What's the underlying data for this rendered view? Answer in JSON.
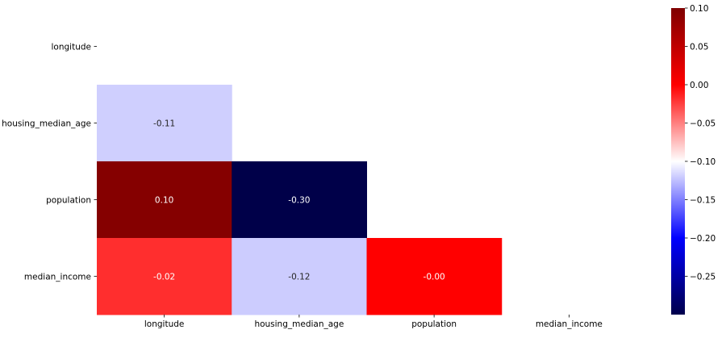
{
  "chart_data": {
    "type": "heatmap",
    "rows": [
      "longitude",
      "housing_median_age",
      "population",
      "median_income"
    ],
    "columns": [
      "longitude",
      "housing_median_age",
      "population",
      "median_income"
    ],
    "cells": [
      {
        "row": 1,
        "col": 0,
        "value": -0.11,
        "label": "-0.11",
        "color": "#cfcffe",
        "text_color": "#262626"
      },
      {
        "row": 2,
        "col": 0,
        "value": 0.1,
        "label": "0.10",
        "color": "#850000",
        "text_color": "#ffffff"
      },
      {
        "row": 2,
        "col": 1,
        "value": -0.3,
        "label": "-0.30",
        "color": "#000049",
        "text_color": "#ffffff"
      },
      {
        "row": 3,
        "col": 0,
        "value": -0.02,
        "label": "-0.02",
        "color": "#ff2e2e",
        "text_color": "#ffffff"
      },
      {
        "row": 3,
        "col": 1,
        "value": -0.12,
        "label": "-0.12",
        "color": "#ccccfe",
        "text_color": "#262626"
      },
      {
        "row": 3,
        "col": 2,
        "value": -0.0,
        "label": "-0.00",
        "color": "#ff0000",
        "text_color": "#ffffff"
      }
    ],
    "mask": "upper triangle including diagonal",
    "colorbar": {
      "colormap": "seismic",
      "vmin": -0.3,
      "vmax": 0.1,
      "ticks": [
        "0.10",
        "0.05",
        "0.00",
        "−0.05",
        "−0.10",
        "−0.15",
        "−0.20",
        "−0.25"
      ],
      "tick_values": [
        0.1,
        0.05,
        0.0,
        -0.05,
        -0.1,
        -0.15,
        -0.2,
        -0.25
      ]
    },
    "title": "",
    "xlabel": "",
    "ylabel": "",
    "grid": false
  }
}
